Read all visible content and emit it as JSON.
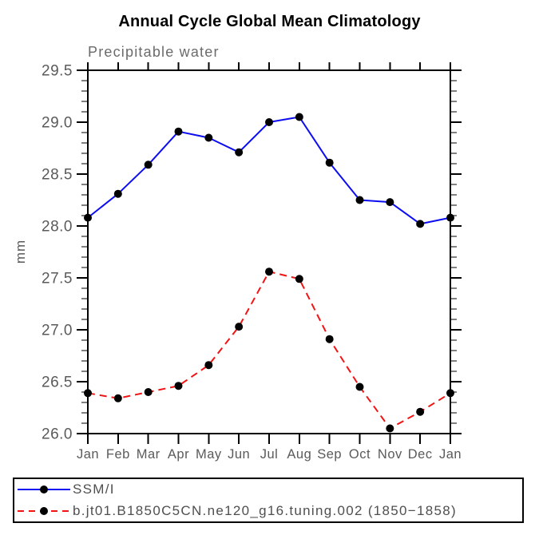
{
  "page": {
    "background": "#ffffff"
  },
  "colors": {
    "axis": "#000000",
    "tick_label": "#5a5a5a",
    "subtitle": "#6b6b6b",
    "legend_text": "#4f4f4f",
    "title": "#000000",
    "series_blue": "#0d0df2",
    "series_red": "#f21414",
    "marker": "#000000"
  },
  "chart_data": {
    "type": "line",
    "title": "Annual Cycle Global Mean Climatology",
    "subtitle": "Precipitable water",
    "xlabel": "",
    "ylabel": "mm",
    "x_categories": [
      "Jan",
      "Feb",
      "Mar",
      "Apr",
      "May",
      "Jun",
      "Jul",
      "Aug",
      "Sep",
      "Oct",
      "Nov",
      "Dec",
      "Jan"
    ],
    "ylim": [
      26.0,
      29.5
    ],
    "y_major_step": 0.5,
    "y_minor_step": 0.1,
    "y_tick_labels": [
      "26.0",
      "26.5",
      "27.0",
      "27.5",
      "28.0",
      "28.5",
      "29.0",
      "29.5"
    ],
    "grid": "off",
    "legend_position": "bottom-box",
    "series": [
      {
        "name": "SSM/I",
        "color": "#0d0df2",
        "line_style": "solid",
        "marker": "filled-circle",
        "marker_color": "#000000",
        "values": [
          28.08,
          28.31,
          28.59,
          28.91,
          28.85,
          28.71,
          29.0,
          29.05,
          28.61,
          28.25,
          28.23,
          28.02,
          28.08
        ]
      },
      {
        "name": "b.jt01.B1850C5CN.ne120_g16.tuning.002 (1850−1858)",
        "color": "#f21414",
        "line_style": "dashed",
        "marker": "filled-circle",
        "marker_color": "#000000",
        "values": [
          26.39,
          26.34,
          26.4,
          26.46,
          26.66,
          27.03,
          27.56,
          27.49,
          26.91,
          26.45,
          26.05,
          26.21,
          26.39
        ]
      }
    ]
  }
}
